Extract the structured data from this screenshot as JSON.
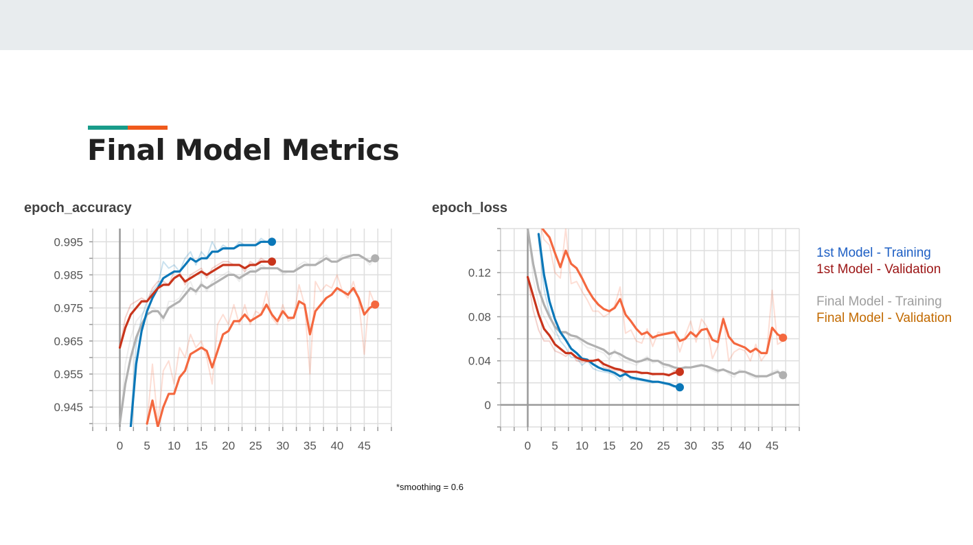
{
  "slide": {
    "title": "Final Model Metrics",
    "footnote": "*smoothing = 0.6"
  },
  "legend": {
    "items": [
      {
        "label": "1st Model - Training",
        "color": "#1e5fc4"
      },
      {
        "label": "1st Model - Validation",
        "color": "#9b1414"
      },
      {
        "label": "Final Model - Training",
        "color": "#9e9e9e"
      },
      {
        "label": "Final Model - Validation",
        "color": "#c26a00"
      }
    ]
  },
  "colors": {
    "first_training": "#0a77b8",
    "first_validation": "#c8341b",
    "final_training": "#b0b0b0",
    "final_validation": "#f4683f"
  },
  "chart_data": [
    {
      "type": "line",
      "title": "epoch_accuracy",
      "xlim": [
        -5,
        50
      ],
      "ylim": [
        0.939,
        0.999
      ],
      "x_ticks": [
        0,
        5,
        10,
        15,
        20,
        25,
        30,
        35,
        40,
        45
      ],
      "y_ticks": [
        0.945,
        0.955,
        0.965,
        0.975,
        0.985,
        0.995
      ],
      "y_tick_labels": [
        "0.945",
        "0.955",
        "0.965",
        "0.975",
        "0.985",
        "0.995"
      ],
      "grid": true,
      "series": [
        {
          "key": "final_training",
          "x": [
            0,
            1,
            2,
            3,
            4,
            5,
            6,
            7,
            8,
            9,
            10,
            11,
            12,
            13,
            14,
            15,
            16,
            17,
            18,
            19,
            20,
            21,
            22,
            23,
            24,
            25,
            26,
            27,
            28,
            29,
            30,
            31,
            32,
            33,
            34,
            35,
            36,
            37,
            38,
            39,
            40,
            41,
            42,
            43,
            44,
            45,
            46,
            47
          ],
          "y": [
            0.94,
            0.952,
            0.96,
            0.966,
            0.97,
            0.973,
            0.974,
            0.974,
            0.972,
            0.975,
            0.976,
            0.977,
            0.979,
            0.981,
            0.98,
            0.982,
            0.981,
            0.982,
            0.983,
            0.984,
            0.985,
            0.985,
            0.984,
            0.985,
            0.986,
            0.986,
            0.987,
            0.987,
            0.987,
            0.987,
            0.986,
            0.986,
            0.986,
            0.987,
            0.988,
            0.988,
            0.988,
            0.989,
            0.99,
            0.989,
            0.989,
            0.99,
            0.9905,
            0.991,
            0.991,
            0.99,
            0.989,
            0.99
          ],
          "raw": [
            0.94,
            0.958,
            0.966,
            0.971,
            0.973,
            0.975,
            0.975,
            0.974,
            0.971,
            0.977,
            0.977,
            0.978,
            0.981,
            0.983,
            0.979,
            0.983,
            0.98,
            0.983,
            0.984,
            0.985,
            0.986,
            0.985,
            0.983,
            0.986,
            0.987,
            0.986,
            0.988,
            0.987,
            0.987,
            0.987,
            0.985,
            0.986,
            0.986,
            0.988,
            0.989,
            0.988,
            0.988,
            0.99,
            0.991,
            0.989,
            0.989,
            0.991,
            0.991,
            0.991,
            0.991,
            0.99,
            0.988,
            0.99
          ]
        },
        {
          "key": "first_training",
          "x": [
            2,
            3,
            4,
            5,
            6,
            7,
            8,
            9,
            10,
            11,
            12,
            13,
            14,
            15,
            16,
            17,
            18,
            19,
            20,
            21,
            22,
            23,
            24,
            25,
            26,
            27,
            28
          ],
          "y": [
            0.939,
            0.958,
            0.968,
            0.974,
            0.978,
            0.981,
            0.984,
            0.985,
            0.986,
            0.986,
            0.988,
            0.99,
            0.989,
            0.99,
            0.99,
            0.992,
            0.992,
            0.993,
            0.993,
            0.993,
            0.994,
            0.994,
            0.994,
            0.994,
            0.995,
            0.995,
            0.995
          ],
          "raw": [
            0.941,
            0.964,
            0.972,
            0.977,
            0.98,
            0.982,
            0.989,
            0.987,
            0.988,
            0.986,
            0.99,
            0.992,
            0.988,
            0.992,
            0.99,
            0.995,
            0.992,
            0.994,
            0.993,
            0.993,
            0.995,
            0.994,
            0.994,
            0.994,
            0.996,
            0.995,
            0.995
          ]
        },
        {
          "key": "first_validation",
          "x": [
            0,
            1,
            2,
            3,
            4,
            5,
            6,
            7,
            8,
            9,
            10,
            11,
            12,
            13,
            14,
            15,
            16,
            17,
            18,
            19,
            20,
            21,
            22,
            23,
            24,
            25,
            26,
            27,
            28
          ],
          "y": [
            0.963,
            0.969,
            0.973,
            0.975,
            0.977,
            0.977,
            0.979,
            0.981,
            0.982,
            0.982,
            0.984,
            0.985,
            0.983,
            0.984,
            0.985,
            0.986,
            0.985,
            0.986,
            0.987,
            0.988,
            0.988,
            0.988,
            0.988,
            0.987,
            0.988,
            0.988,
            0.989,
            0.989,
            0.989
          ],
          "raw": [
            0.963,
            0.972,
            0.976,
            0.977,
            0.978,
            0.977,
            0.981,
            0.983,
            0.983,
            0.982,
            0.986,
            0.986,
            0.982,
            0.985,
            0.986,
            0.987,
            0.984,
            0.987,
            0.988,
            0.989,
            0.989,
            0.988,
            0.988,
            0.986,
            0.989,
            0.988,
            0.99,
            0.989,
            0.989
          ]
        },
        {
          "key": "final_validation",
          "x": [
            5,
            6,
            7,
            8,
            9,
            10,
            11,
            12,
            13,
            14,
            15,
            16,
            17,
            18,
            19,
            20,
            21,
            22,
            23,
            24,
            25,
            26,
            27,
            28,
            29,
            30,
            31,
            32,
            33,
            34,
            35,
            36,
            37,
            38,
            39,
            40,
            41,
            42,
            43,
            44,
            45,
            46,
            47
          ],
          "y": [
            0.94,
            0.947,
            0.939,
            0.945,
            0.949,
            0.949,
            0.954,
            0.956,
            0.961,
            0.962,
            0.963,
            0.962,
            0.957,
            0.962,
            0.967,
            0.968,
            0.971,
            0.971,
            0.973,
            0.971,
            0.972,
            0.973,
            0.976,
            0.973,
            0.971,
            0.974,
            0.972,
            0.972,
            0.977,
            0.976,
            0.967,
            0.974,
            0.976,
            0.978,
            0.979,
            0.981,
            0.98,
            0.979,
            0.981,
            0.978,
            0.973,
            0.975,
            0.976
          ],
          "raw": [
            0.94,
            0.958,
            0.94,
            0.956,
            0.959,
            0.952,
            0.963,
            0.96,
            0.967,
            0.963,
            0.965,
            0.96,
            0.952,
            0.97,
            0.973,
            0.97,
            0.976,
            0.97,
            0.976,
            0.97,
            0.974,
            0.973,
            0.98,
            0.972,
            0.97,
            0.976,
            0.971,
            0.972,
            0.982,
            0.976,
            0.955,
            0.983,
            0.98,
            0.982,
            0.981,
            0.985,
            0.98,
            0.978,
            0.983,
            0.977,
            0.961,
            0.98,
            0.976
          ]
        }
      ]
    },
    {
      "type": "line",
      "title": "epoch_loss",
      "xlim": [
        -5,
        50
      ],
      "ylim": [
        -0.02,
        0.16
      ],
      "x_ticks": [
        0,
        5,
        10,
        15,
        20,
        25,
        30,
        35,
        40,
        45
      ],
      "y_ticks": [
        0,
        0.04,
        0.08,
        0.12
      ],
      "y_tick_labels": [
        "0",
        "0.04",
        "0.08",
        "0.12"
      ],
      "grid": true,
      "series": [
        {
          "key": "final_training",
          "x": [
            0,
            1,
            2,
            3,
            4,
            5,
            6,
            7,
            8,
            9,
            10,
            11,
            12,
            13,
            14,
            15,
            16,
            17,
            18,
            19,
            20,
            21,
            22,
            23,
            24,
            25,
            26,
            27,
            28,
            29,
            30,
            31,
            32,
            33,
            34,
            35,
            36,
            37,
            38,
            39,
            40,
            41,
            42,
            43,
            44,
            45,
            46,
            47
          ],
          "y": [
            0.16,
            0.128,
            0.105,
            0.091,
            0.08,
            0.071,
            0.066,
            0.066,
            0.063,
            0.062,
            0.059,
            0.056,
            0.054,
            0.052,
            0.05,
            0.046,
            0.048,
            0.046,
            0.043,
            0.041,
            0.039,
            0.04,
            0.042,
            0.04,
            0.04,
            0.037,
            0.036,
            0.034,
            0.033,
            0.034,
            0.034,
            0.035,
            0.036,
            0.035,
            0.033,
            0.031,
            0.032,
            0.03,
            0.028,
            0.03,
            0.03,
            0.028,
            0.026,
            0.026,
            0.026,
            0.028,
            0.03,
            0.027
          ],
          "raw": [
            0.165,
            0.115,
            0.092,
            0.08,
            0.071,
            0.064,
            0.062,
            0.066,
            0.059,
            0.061,
            0.056,
            0.052,
            0.051,
            0.049,
            0.047,
            0.041,
            0.05,
            0.043,
            0.039,
            0.038,
            0.036,
            0.041,
            0.044,
            0.038,
            0.04,
            0.034,
            0.035,
            0.031,
            0.032,
            0.035,
            0.034,
            0.036,
            0.037,
            0.034,
            0.031,
            0.029,
            0.033,
            0.028,
            0.025,
            0.032,
            0.03,
            0.026,
            0.024,
            0.026,
            0.026,
            0.03,
            0.032,
            0.025
          ]
        },
        {
          "key": "first_training",
          "x": [
            2,
            3,
            4,
            5,
            6,
            7,
            8,
            9,
            10,
            11,
            12,
            13,
            14,
            15,
            16,
            17,
            18,
            19,
            20,
            21,
            22,
            23,
            24,
            25,
            26,
            27,
            28
          ],
          "y": [
            0.155,
            0.118,
            0.094,
            0.078,
            0.066,
            0.059,
            0.051,
            0.047,
            0.042,
            0.041,
            0.037,
            0.034,
            0.032,
            0.031,
            0.029,
            0.026,
            0.028,
            0.025,
            0.024,
            0.023,
            0.022,
            0.021,
            0.021,
            0.02,
            0.019,
            0.017,
            0.016
          ],
          "raw": [
            0.15,
            0.105,
            0.083,
            0.069,
            0.058,
            0.052,
            0.043,
            0.043,
            0.036,
            0.04,
            0.033,
            0.031,
            0.03,
            0.029,
            0.027,
            0.022,
            0.03,
            0.023,
            0.023,
            0.022,
            0.021,
            0.02,
            0.021,
            0.019,
            0.018,
            0.016,
            0.016
          ]
        },
        {
          "key": "first_validation",
          "x": [
            0,
            1,
            2,
            3,
            4,
            5,
            6,
            7,
            8,
            9,
            10,
            11,
            12,
            13,
            14,
            15,
            16,
            17,
            18,
            19,
            20,
            21,
            22,
            23,
            24,
            25,
            26,
            27,
            28
          ],
          "y": [
            0.116,
            0.099,
            0.082,
            0.069,
            0.063,
            0.055,
            0.051,
            0.047,
            0.047,
            0.043,
            0.041,
            0.04,
            0.04,
            0.041,
            0.037,
            0.035,
            0.033,
            0.032,
            0.03,
            0.03,
            0.03,
            0.029,
            0.029,
            0.028,
            0.028,
            0.028,
            0.027,
            0.029,
            0.03
          ],
          "raw": [
            0.116,
            0.086,
            0.068,
            0.058,
            0.058,
            0.049,
            0.047,
            0.044,
            0.048,
            0.04,
            0.039,
            0.039,
            0.04,
            0.042,
            0.034,
            0.033,
            0.031,
            0.031,
            0.028,
            0.03,
            0.03,
            0.028,
            0.029,
            0.027,
            0.028,
            0.028,
            0.026,
            0.031,
            0.03
          ]
        },
        {
          "key": "final_validation",
          "x": [
            2,
            3,
            4,
            5,
            6,
            7,
            8,
            9,
            10,
            11,
            12,
            13,
            14,
            15,
            16,
            17,
            18,
            19,
            20,
            21,
            22,
            23,
            24,
            25,
            26,
            27,
            28,
            29,
            30,
            31,
            32,
            33,
            34,
            35,
            36,
            37,
            38,
            39,
            40,
            41,
            42,
            43,
            44,
            45,
            46,
            47
          ],
          "y": [
            0.165,
            0.158,
            0.152,
            0.138,
            0.125,
            0.14,
            0.128,
            0.124,
            0.115,
            0.105,
            0.097,
            0.091,
            0.087,
            0.085,
            0.088,
            0.096,
            0.082,
            0.076,
            0.069,
            0.064,
            0.066,
            0.061,
            0.063,
            0.064,
            0.065,
            0.066,
            0.058,
            0.06,
            0.066,
            0.062,
            0.068,
            0.069,
            0.059,
            0.057,
            0.078,
            0.062,
            0.056,
            0.054,
            0.052,
            0.048,
            0.051,
            0.047,
            0.047,
            0.07,
            0.064,
            0.061
          ],
          "raw": [
            0.17,
            0.15,
            0.145,
            0.12,
            0.115,
            0.16,
            0.11,
            0.112,
            0.103,
            0.095,
            0.085,
            0.085,
            0.08,
            0.083,
            0.09,
            0.107,
            0.065,
            0.068,
            0.058,
            0.056,
            0.069,
            0.053,
            0.066,
            0.065,
            0.066,
            0.067,
            0.048,
            0.063,
            0.076,
            0.057,
            0.078,
            0.071,
            0.042,
            0.053,
            0.08,
            0.04,
            0.048,
            0.051,
            0.049,
            0.04,
            0.055,
            0.04,
            0.047,
            0.104,
            0.055,
            0.058
          ]
        }
      ]
    }
  ]
}
